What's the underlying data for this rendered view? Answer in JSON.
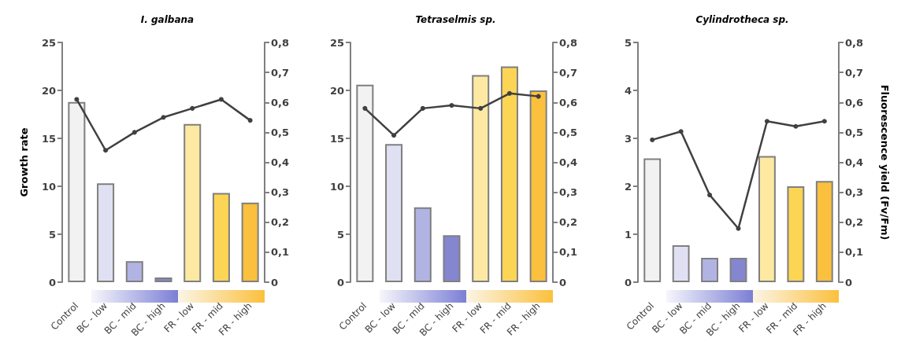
{
  "chart_data": [
    {
      "type": "bar",
      "title": "I. galbana",
      "ylabel": "Growth rate",
      "categories": [
        "Control",
        "BC - low",
        "BC - mid",
        "BC - high",
        "FR - low",
        "FR - mid",
        "FR - high"
      ],
      "marker": "circle",
      "series": [
        {
          "colors": [
            "#f2f2f2",
            "#dfe1f3",
            "#b1b3e3",
            "#8487cf",
            "#fde9a2",
            "#fdd555",
            "#fbc03d"
          ],
          "values": [
            18.8,
            10.3,
            2.2,
            0.5,
            16.5,
            9.3,
            8.3
          ]
        },
        {
          "type": "line",
          "axis": "y2",
          "color": "#404040",
          "values": [
            0.61,
            0.44,
            0.5,
            0.55,
            0.58,
            0.61,
            0.54
          ]
        }
      ],
      "ylim": [
        0,
        25
      ],
      "yticks": [
        0,
        5,
        10,
        15,
        20,
        25
      ],
      "y2lim": [
        0,
        0.8
      ],
      "y2ticks": [
        {
          "value": 0,
          "label": "0"
        },
        {
          "value": 0.1,
          "label": "0,1"
        },
        {
          "value": 0.2,
          "label": "0,2"
        },
        {
          "value": 0.3,
          "label": "0,3"
        },
        {
          "value": 0.4,
          "label": "0,4"
        },
        {
          "value": 0.5,
          "label": "0,5"
        },
        {
          "value": 0.6,
          "label": "0,6"
        },
        {
          "value": 0.7,
          "label": "0,7"
        },
        {
          "value": 0.8,
          "label": "0,8"
        }
      ]
    },
    {
      "type": "bar",
      "title": "Tetraselmis sp.",
      "categories": [
        "Control",
        "BC - low",
        "BC - mid",
        "BC - high",
        "FR - low",
        "FR - mid",
        "FR - high"
      ],
      "marker": "circle",
      "series": [
        {
          "colors": [
            "#f2f2f2",
            "#dfe1f3",
            "#b1b3e3",
            "#8487cf",
            "#fde9a2",
            "#fdd555",
            "#fbc03d"
          ],
          "values": [
            20.6,
            14.4,
            7.8,
            4.9,
            21.6,
            22.5,
            20.0
          ]
        },
        {
          "type": "line",
          "axis": "y2",
          "color": "#404040",
          "values": [
            0.58,
            0.49,
            0.58,
            0.59,
            0.58,
            0.63,
            0.62
          ]
        }
      ],
      "ylim": [
        0,
        25
      ],
      "yticks": [
        0,
        5,
        10,
        15,
        20,
        25
      ],
      "y2lim": [
        0,
        0.8
      ],
      "y2ticks": [
        {
          "value": 0,
          "label": "0"
        },
        {
          "value": 0.1,
          "label": "0,1"
        },
        {
          "value": 0.2,
          "label": "0,2"
        },
        {
          "value": 0.3,
          "label": "0,3"
        },
        {
          "value": 0.4,
          "label": "0,4"
        },
        {
          "value": 0.5,
          "label": "0,5"
        },
        {
          "value": 0.6,
          "label": "0,6"
        },
        {
          "value": 0.7,
          "label": "0,7"
        },
        {
          "value": 0.8,
          "label": "0,8"
        }
      ]
    },
    {
      "type": "bar",
      "title": "Cylindrotheca sp.",
      "y2label": "Fluorescence yield (Fv/Fm)",
      "categories": [
        "Control",
        "BC - low",
        "BC - mid",
        "BC - high",
        "FR - low",
        "FR - mid",
        "FR - high"
      ],
      "marker": "circle",
      "series": [
        {
          "colors": [
            "#f2f2f2",
            "#dfe1f3",
            "#b1b3e3",
            "#8487cf",
            "#fde9a2",
            "#fdd555",
            "#fbc03d"
          ],
          "values": [
            2.58,
            0.77,
            0.51,
            0.51,
            2.63,
            2.0,
            2.11
          ]
        },
        {
          "type": "line",
          "axis": "y2",
          "color": "#404040",
          "values": [
            0.475,
            0.503,
            0.291,
            0.179,
            0.537,
            0.52,
            0.537
          ]
        }
      ],
      "ylim": [
        0,
        5
      ],
      "yticks": [
        0,
        1,
        2,
        3,
        4,
        5
      ],
      "y2lim": [
        0,
        0.8
      ],
      "y2ticks": [
        {
          "value": 0,
          "label": "0"
        },
        {
          "value": 0.1,
          "label": "0,1"
        },
        {
          "value": 0.2,
          "label": "0,2"
        },
        {
          "value": 0.3,
          "label": "0,3"
        },
        {
          "value": 0.4,
          "label": "0,4"
        },
        {
          "value": 0.5,
          "label": "0,5"
        },
        {
          "value": 0.6,
          "label": "0,6"
        },
        {
          "value": 0.7,
          "label": "0,7"
        },
        {
          "value": 0.8,
          "label": "0,8"
        }
      ]
    }
  ]
}
